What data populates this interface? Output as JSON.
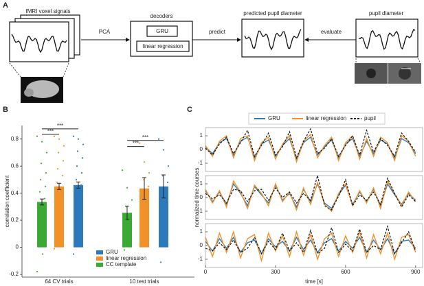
{
  "panel_labels": [
    "A",
    "B",
    "C"
  ],
  "diagram": {
    "input_label": "fMRI voxel signals",
    "step1": "PCA",
    "decoder_label": "decoders",
    "decoders": [
      "GRU",
      "linear regression"
    ],
    "step2": "predict",
    "output_label": "predicted pupil diameter",
    "step3": "evaluate",
    "target_label": "pupil diameter"
  },
  "chart_data": [
    {
      "type": "bar",
      "ylabel": "correlation coefficient",
      "categories": [
        "64 CV trials",
        "10 test trials"
      ],
      "ylim": [
        -0.22,
        0.9
      ],
      "yticks": [
        -0.2,
        0,
        0.2,
        0.4,
        0.6,
        0.8
      ],
      "series": [
        {
          "name": "CC template",
          "color": "#3aaa35",
          "values": [
            0.335,
            0.255
          ],
          "errors": [
            0.022,
            0.05
          ],
          "points": [
            [
              0.82,
              0.78,
              0.7,
              0.62,
              0.55,
              0.5,
              0.45,
              0.41,
              0.36,
              0.3,
              0.25,
              0.2,
              0.12,
              0.05,
              -0.05,
              -0.18
            ],
            [
              0.57,
              0.44,
              0.35,
              0.3,
              0.25,
              0.2,
              0.15,
              0.12,
              0.05,
              -0.02
            ]
          ]
        },
        {
          "name": "linear regression",
          "color": "#f39129",
          "values": [
            0.45,
            0.435
          ],
          "errors": [
            0.023,
            0.08
          ],
          "points": [
            [
              0.82,
              0.8,
              0.75,
              0.7,
              0.64,
              0.58,
              0.53,
              0.48,
              0.44,
              0.4,
              0.35,
              0.3,
              0.24,
              0.16,
              0.08,
              -0.01
            ],
            [
              0.77,
              0.63,
              0.55,
              0.5,
              0.45,
              0.4,
              0.35,
              0.3,
              0.2,
              0.08
            ]
          ]
        },
        {
          "name": "GRU",
          "color": "#2e79b9",
          "values": [
            0.46,
            0.45
          ],
          "errors": [
            0.023,
            0.085
          ],
          "points": [
            [
              0.82,
              0.8,
              0.76,
              0.71,
              0.66,
              0.6,
              0.55,
              0.5,
              0.46,
              0.42,
              0.37,
              0.31,
              0.25,
              0.18,
              0.1,
              -0.05
            ],
            [
              0.8,
              0.72,
              0.6,
              0.53,
              0.48,
              0.44,
              0.38,
              0.32,
              0.25,
              -0.11
            ]
          ]
        }
      ],
      "annotations": [
        {
          "text": "***",
          "group": 0,
          "from": 0,
          "to": 1,
          "y": 0.835
        },
        {
          "text": "***",
          "group": 0,
          "from": 0,
          "to": 2,
          "y": 0.875
        },
        {
          "text": "***",
          "group": 1,
          "from": 0,
          "to": 1,
          "y": 0.745
        },
        {
          "text": "***",
          "group": 1,
          "from": 0,
          "to": 2,
          "y": 0.79
        }
      ],
      "legend": "lower right"
    },
    {
      "type": "line",
      "xlabel": "time [s]",
      "ylabel": "normalized time courses",
      "legend": "top",
      "xlim": [
        0,
        930
      ],
      "xticks": [
        0,
        300,
        600,
        900
      ],
      "ylim": [
        -1.6,
        1.6
      ],
      "yticks": [
        -1,
        0,
        1
      ],
      "x": [
        0,
        30,
        60,
        90,
        120,
        150,
        180,
        210,
        240,
        270,
        300,
        330,
        360,
        390,
        420,
        450,
        480,
        510,
        540,
        570,
        600,
        630,
        660,
        690,
        720,
        750,
        780,
        810,
        840,
        870,
        900
      ],
      "series": [
        {
          "name": "GRU",
          "color": "#2e79b9",
          "dashed": false,
          "values": [
            [
              0.2,
              -0.3,
              0.5,
              0.8,
              -0.4,
              0.6,
              0.9,
              -0.6,
              0.4,
              0.7,
              -0.5,
              0.3,
              0.8,
              -0.7,
              0.5,
              0.9,
              -0.4,
              0.2,
              0.7,
              -0.6,
              0.4,
              0.8,
              -0.5,
              0.6,
              -0.3,
              0.7,
              0.4,
              -0.6,
              0.8,
              0.5,
              -0.3
            ],
            [
              0.5,
              -0.3,
              0.4,
              -0.5,
              1.0,
              0.3,
              -0.6,
              0.8,
              0.2,
              -0.4,
              0.9,
              -0.2,
              0.3,
              -0.7,
              0.6,
              -0.3,
              1.0,
              -0.4,
              -0.8,
              0.2,
              0.9,
              -0.5,
              0.4,
              -0.3,
              0.6,
              -0.6,
              1.0,
              0.2,
              -0.5,
              0.3,
              -0.2
            ],
            [
              0.3,
              -0.4,
              0.5,
              -0.2,
              0.6,
              -0.5,
              0.2,
              0.4,
              -0.6,
              0.5,
              -0.1,
              0.3,
              -0.4,
              0.6,
              -0.3,
              0.4,
              -0.5,
              0.2,
              0.5,
              -0.4,
              0.3,
              -0.2,
              0.6,
              -0.5,
              0.4,
              -0.3,
              0.5,
              -0.6,
              0.3,
              0.4,
              -0.2
            ]
          ]
        },
        {
          "name": "linear regression",
          "color": "#f39129",
          "dashed": false,
          "values": [
            [
              0.3,
              -0.5,
              0.6,
              1.0,
              -0.6,
              0.8,
              1.0,
              -0.8,
              0.5,
              0.9,
              -0.7,
              0.4,
              1.0,
              -0.9,
              0.6,
              1.1,
              -0.6,
              0.3,
              0.9,
              -0.8,
              0.5,
              1.0,
              -0.7,
              0.8,
              -0.5,
              0.9,
              0.5,
              -0.8,
              1.0,
              0.6,
              -0.5
            ],
            [
              0.6,
              -0.4,
              0.5,
              -0.7,
              1.2,
              0.4,
              -0.8,
              0.9,
              0.3,
              -0.6,
              1.0,
              -0.3,
              0.4,
              -0.9,
              0.7,
              -0.5,
              1.1,
              -0.5,
              -1.0,
              0.3,
              1.0,
              -0.6,
              0.5,
              -0.4,
              0.7,
              -0.8,
              1.2,
              0.3,
              -0.6,
              0.4,
              -0.3
            ],
            [
              0.6,
              -0.8,
              0.9,
              -0.5,
              1.0,
              -0.9,
              0.5,
              0.8,
              -1.1,
              0.9,
              -0.4,
              0.7,
              -0.8,
              1.0,
              -0.7,
              0.8,
              -1.0,
              0.5,
              0.9,
              -0.8,
              0.7,
              -0.5,
              1.0,
              -0.9,
              0.8,
              -0.6,
              0.9,
              -1.0,
              0.6,
              0.8,
              -0.5
            ]
          ]
        },
        {
          "name": "pupil",
          "color": "#111111",
          "dashed": true,
          "values": [
            [
              0.1,
              -0.4,
              0.4,
              0.9,
              -0.3,
              0.5,
              1.4,
              -0.5,
              0.3,
              1.2,
              -0.4,
              0.2,
              1.3,
              -0.6,
              0.6,
              1.5,
              -0.3,
              0.1,
              0.8,
              -0.5,
              0.3,
              1.0,
              -0.4,
              1.4,
              -0.2,
              0.8,
              0.3,
              -0.5,
              1.2,
              0.6,
              -0.2
            ],
            [
              0.3,
              -0.1,
              0.2,
              -0.4,
              0.6,
              0.5,
              -0.3,
              0.5,
              0.6,
              -0.2,
              0.7,
              0.0,
              0.4,
              -0.4,
              0.3,
              -0.2,
              1.6,
              -0.6,
              -0.9,
              0.1,
              1.3,
              -0.6,
              0.2,
              -0.2,
              0.4,
              -0.5,
              1.4,
              0.3,
              -0.7,
              0.2,
              -0.3
            ],
            [
              -0.2,
              -0.4,
              0.2,
              -0.3,
              0.4,
              -0.5,
              -0.2,
              0.6,
              -0.6,
              0.3,
              -0.3,
              0.9,
              -0.4,
              0.2,
              -0.5,
              1.1,
              -0.6,
              -0.2,
              1.3,
              -0.5,
              0.1,
              -0.4,
              1.2,
              -0.5,
              0.0,
              -0.3,
              1.4,
              -0.6,
              0.2,
              1.0,
              -0.4
            ]
          ]
        }
      ]
    }
  ]
}
